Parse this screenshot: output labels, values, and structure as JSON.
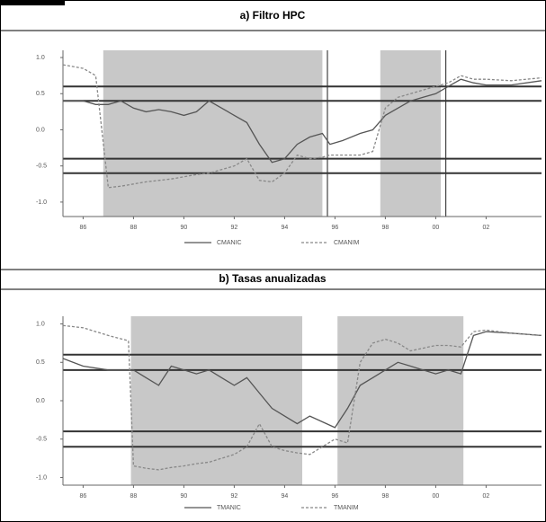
{
  "chart_data": [
    {
      "type": "line",
      "title": "a) Filtro HPC",
      "xlim": [
        1985.2,
        2004.2
      ],
      "xticks": [
        {
          "value": 1986,
          "label": "86"
        },
        {
          "value": 1988,
          "label": "88"
        },
        {
          "value": 1990,
          "label": "90"
        },
        {
          "value": 1992,
          "label": "92"
        },
        {
          "value": 1994,
          "label": "94"
        },
        {
          "value": 1996,
          "label": "96"
        },
        {
          "value": 1998,
          "label": "98"
        },
        {
          "value": 2000,
          "label": "00"
        },
        {
          "value": 2002,
          "label": "02"
        }
      ],
      "ylim": [
        -1.2,
        1.1
      ],
      "yticks": [
        {
          "value": 1,
          "label": "1.0"
        },
        0.5,
        {
          "value": 0,
          "label": "0.0"
        },
        -0.5,
        {
          "value": -1,
          "label": "-1.0"
        }
      ],
      "reference_lines": [
        0.6,
        0.4,
        -0.4,
        -0.6
      ],
      "shaded_periods": [
        [
          1986.8,
          1995.5
        ],
        [
          1997.8,
          2000.2
        ]
      ],
      "vertical_lines": [
        1995.7,
        2000.4
      ],
      "x": [
        1985.2,
        1986,
        1986.5,
        1987,
        1987.5,
        1988,
        1988.5,
        1989,
        1989.5,
        1990,
        1990.5,
        1991,
        1991.5,
        1992,
        1992.5,
        1993,
        1993.5,
        1994,
        1994.5,
        1995,
        1995.5,
        1995.8,
        1996.3,
        1997,
        1997.5,
        1998,
        1998.5,
        1999,
        1999.5,
        2000,
        2000.5,
        2001,
        2001.5,
        2002,
        2003,
        2004.2
      ],
      "series": [
        {
          "name": "CMANIC",
          "color": "#555555",
          "dash": false,
          "values": [
            0.4,
            0.4,
            0.35,
            0.35,
            0.4,
            0.3,
            0.25,
            0.28,
            0.25,
            0.2,
            0.25,
            0.4,
            0.3,
            0.2,
            0.1,
            -0.2,
            -0.45,
            -0.4,
            -0.2,
            -0.1,
            -0.05,
            -0.2,
            -0.15,
            -0.05,
            0.0,
            0.2,
            0.3,
            0.4,
            0.45,
            0.5,
            0.6,
            0.7,
            0.65,
            0.62,
            0.62,
            0.68
          ]
        },
        {
          "name": "CMANIM",
          "color": "#888888",
          "dash": true,
          "values": [
            0.9,
            0.85,
            0.75,
            -0.8,
            -0.78,
            -0.75,
            -0.72,
            -0.7,
            -0.68,
            -0.65,
            -0.62,
            -0.6,
            -0.55,
            -0.5,
            -0.4,
            -0.7,
            -0.72,
            -0.6,
            -0.35,
            -0.4,
            -0.38,
            -0.35,
            -0.35,
            -0.35,
            -0.3,
            0.3,
            0.45,
            0.5,
            0.55,
            0.6,
            0.65,
            0.75,
            0.7,
            0.7,
            0.68,
            0.72
          ]
        }
      ]
    },
    {
      "type": "line",
      "title": "b) Tasas anualizadas",
      "xlim": [
        1985.2,
        2004.2
      ],
      "xticks": [
        {
          "value": 1986,
          "label": "86"
        },
        {
          "value": 1988,
          "label": "88"
        },
        {
          "value": 1990,
          "label": "90"
        },
        {
          "value": 1992,
          "label": "92"
        },
        {
          "value": 1994,
          "label": "94"
        },
        {
          "value": 1996,
          "label": "96"
        },
        {
          "value": 1998,
          "label": "98"
        },
        {
          "value": 2000,
          "label": "00"
        },
        {
          "value": 2002,
          "label": "02"
        }
      ],
      "ylim": [
        -1.1,
        1.1
      ],
      "yticks": [
        {
          "value": 1,
          "label": "1.0"
        },
        0.5,
        {
          "value": 0,
          "label": "0.0"
        },
        -0.5,
        {
          "value": -1,
          "label": "-1.0"
        }
      ],
      "reference_lines": [
        0.6,
        0.4,
        -0.4,
        -0.6
      ],
      "shaded_periods": [
        [
          1987.9,
          1994.7
        ],
        [
          1996.1,
          2001.1
        ]
      ],
      "vertical_lines": [],
      "x": [
        1985.2,
        1986,
        1987,
        1987.8,
        1988,
        1988.5,
        1989,
        1989.5,
        1990,
        1990.5,
        1991,
        1991.5,
        1992,
        1992.5,
        1993,
        1993.5,
        1994,
        1994.5,
        1995,
        1996,
        1996.5,
        1997,
        1997.5,
        1998,
        1998.5,
        1999,
        2000,
        2000.5,
        2001,
        2001.5,
        2002,
        2003,
        2004.2
      ],
      "series": [
        {
          "name": "TMANIC",
          "color": "#555555",
          "dash": false,
          "values": [
            0.55,
            0.45,
            0.4,
            0.4,
            0.4,
            0.3,
            0.2,
            0.45,
            0.4,
            0.35,
            0.4,
            0.3,
            0.2,
            0.3,
            0.1,
            -0.1,
            -0.2,
            -0.3,
            -0.2,
            -0.35,
            -0.1,
            0.2,
            0.3,
            0.4,
            0.5,
            0.45,
            0.35,
            0.4,
            0.35,
            0.85,
            0.9,
            0.88,
            0.85
          ]
        },
        {
          "name": "TMANIM",
          "color": "#888888",
          "dash": true,
          "values": [
            0.98,
            0.95,
            0.85,
            0.78,
            -0.85,
            -0.88,
            -0.9,
            -0.87,
            -0.85,
            -0.82,
            -0.8,
            -0.75,
            -0.7,
            -0.6,
            -0.3,
            -0.6,
            -0.65,
            -0.68,
            -0.7,
            -0.5,
            -0.55,
            0.5,
            0.75,
            0.8,
            0.75,
            0.65,
            0.72,
            0.72,
            0.7,
            0.9,
            0.92,
            0.88,
            0.85
          ]
        }
      ]
    }
  ]
}
